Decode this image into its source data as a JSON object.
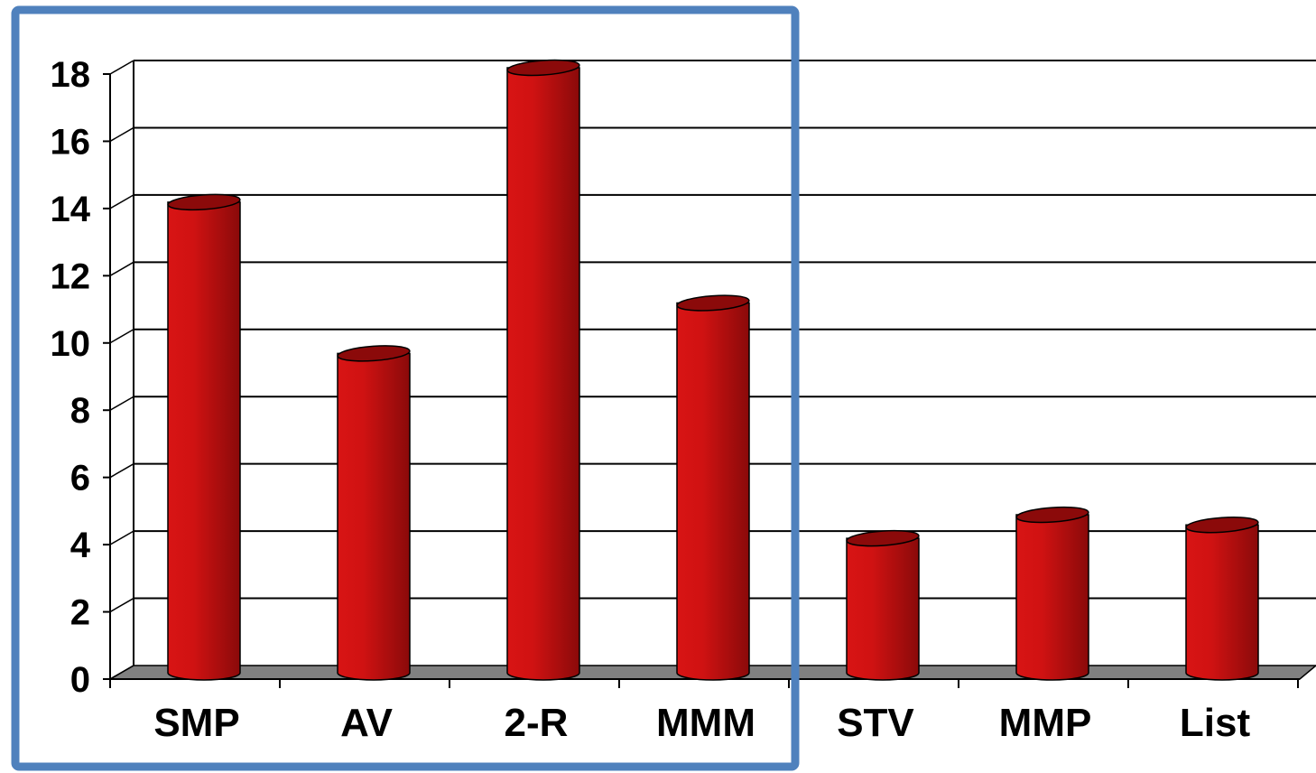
{
  "chart_data": {
    "type": "bar",
    "style": "3d-cylinder",
    "title": "",
    "xlabel": "",
    "ylabel": "",
    "categories": [
      "SMP",
      "AV",
      "2-R",
      "MMM",
      "STV",
      "MMP",
      "List"
    ],
    "values": [
      14,
      9.5,
      18,
      11,
      4,
      4.7,
      4.4
    ],
    "ylim": [
      0,
      18
    ],
    "yticks": [
      0,
      2,
      4,
      6,
      8,
      10,
      12,
      14,
      16,
      18
    ],
    "grid": true,
    "legend": "none",
    "highlight": {
      "categories": [
        "SMP",
        "AV",
        "2-R",
        "MMM"
      ],
      "border_color": "#4f81bd"
    },
    "colors": {
      "bar": "#cc1111",
      "bar_dark": "#8b0a0a",
      "floor": "#808080",
      "grid": "#000000"
    }
  }
}
